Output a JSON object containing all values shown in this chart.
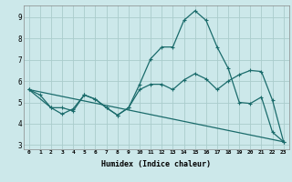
{
  "xlabel": "Humidex (Indice chaleur)",
  "bg_color": "#cce8ea",
  "grid_color": "#aacccc",
  "line_color": "#1a6b6b",
  "xlim": [
    -0.5,
    23.5
  ],
  "ylim": [
    2.8,
    9.55
  ],
  "yticks": [
    3,
    4,
    5,
    6,
    7,
    8,
    9
  ],
  "xticks": [
    0,
    1,
    2,
    3,
    4,
    5,
    6,
    7,
    8,
    9,
    10,
    11,
    12,
    13,
    14,
    15,
    16,
    17,
    18,
    19,
    20,
    21,
    22,
    23
  ],
  "line1_x": [
    0,
    1,
    2,
    3,
    4,
    5,
    6,
    7,
    8,
    9,
    10,
    11,
    12,
    13,
    14,
    15,
    16,
    17,
    18,
    19,
    20,
    21,
    22,
    23
  ],
  "line1_y": [
    5.6,
    5.35,
    4.75,
    4.75,
    4.6,
    5.35,
    5.15,
    4.75,
    4.4,
    4.75,
    5.85,
    7.05,
    7.6,
    7.6,
    8.85,
    9.3,
    8.85,
    7.6,
    6.6,
    5.0,
    4.95,
    5.25,
    3.6,
    3.15
  ],
  "line2_x": [
    0,
    2,
    3,
    4,
    5,
    6,
    7,
    8,
    9,
    10,
    11,
    12,
    13,
    14,
    15,
    16,
    17,
    18,
    19,
    20,
    21,
    22,
    23
  ],
  "line2_y": [
    5.6,
    4.75,
    4.45,
    4.7,
    5.35,
    5.15,
    4.75,
    4.4,
    4.75,
    5.6,
    5.85,
    5.85,
    5.6,
    6.05,
    6.35,
    6.1,
    5.6,
    6.0,
    6.3,
    6.5,
    6.45,
    5.1,
    3.15
  ],
  "line3_x": [
    0,
    23
  ],
  "line3_y": [
    5.6,
    3.15
  ]
}
